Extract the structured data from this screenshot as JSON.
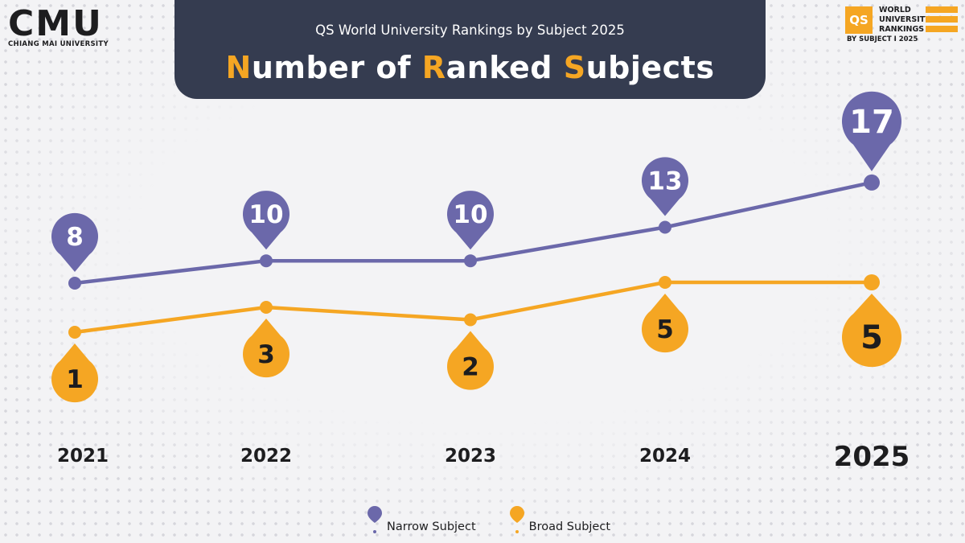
{
  "logo": {
    "mark_c": "C",
    "mark_m": "M",
    "mark_u": "U",
    "subtitle": "CHIANG MAI UNIVERSITY"
  },
  "header": {
    "subtitle": "QS World University Rankings by Subject 2025",
    "title_n_accent": "N",
    "title_n_rest": "umber of ",
    "title_r_accent": "R",
    "title_r_rest": "anked ",
    "title_s_accent": "S",
    "title_s_rest": "ubjects"
  },
  "qs_badge": {
    "box": "QS",
    "line1": "WORLD",
    "line2": "UNIVERSITY",
    "line3": "RANKINGS",
    "footer": "BY SUBJECT I 2025"
  },
  "colors": {
    "narrow": "#6b68aa",
    "broad": "#f5a623",
    "header_bg": "#353c50",
    "text": "#1d1d1f"
  },
  "chart_data": {
    "type": "line",
    "title": "Number of Ranked Subjects",
    "categories": [
      "2021",
      "2022",
      "2023",
      "2024",
      "2025"
    ],
    "series": [
      {
        "name": "Narrow Subject",
        "values": [
          8,
          10,
          10,
          13,
          17
        ],
        "color": "#6b68aa",
        "label_position": "above"
      },
      {
        "name": "Broad Subject",
        "values": [
          1,
          3,
          2,
          5,
          5
        ],
        "color": "#f5a623",
        "label_position": "below"
      }
    ],
    "grid": false,
    "legend": "bottom-center",
    "highlight_category": "2025"
  },
  "legend": {
    "narrow_label": "Narrow Subject",
    "broad_label": "Broad Subject"
  }
}
